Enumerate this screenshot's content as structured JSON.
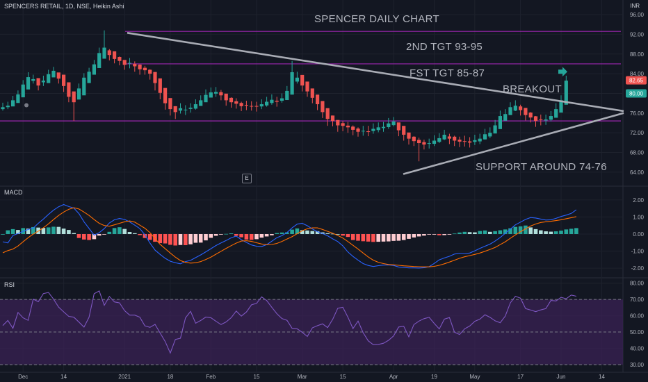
{
  "header": {
    "title": "SPENCERS RETAIL, 1D, NSE, Heikin Ashi",
    "currency": "INR"
  },
  "annotations": {
    "title": "SPENCER DAILY CHART",
    "tgt2": "2ND TGT 93-95",
    "tgt1": "FST TGT 85-87",
    "breakout": "BREAKOUT",
    "support": "SUPPORT AROUND 74-76",
    "event_marker": "E"
  },
  "colors": {
    "up": "#26a69a",
    "down": "#ef5350",
    "level_line": "#9c27b0",
    "trend_line": "#a9acb5",
    "macd_line": "#2962ff",
    "signal_line": "#ff6d00",
    "rsi_line": "#7e57c2",
    "rsi_band": "#3a2254"
  },
  "price_labels": {
    "last": "82.65",
    "current": "80.00"
  },
  "chart_data": [
    {
      "type": "candlestick",
      "name": "Price",
      "y_ticks": [
        "96.00",
        "92.00",
        "88.00",
        "84.00",
        "80.00",
        "76.00",
        "72.00",
        "68.00",
        "64.00"
      ],
      "ylim": [
        62,
        97
      ],
      "x_ticks": [
        "Dec",
        "14",
        "2021",
        "18",
        "Feb",
        "15",
        "Mar",
        "15",
        "Apr",
        "19",
        "May",
        "17",
        "Jun",
        "14"
      ],
      "close": [
        77.2,
        77.5,
        78.6,
        79.8,
        81.8,
        83.3,
        82.9,
        81.6,
        82.6,
        83.9,
        84.6,
        83.0,
        81.5,
        79.3,
        78.2,
        81.0,
        83.2,
        84.4,
        85.9,
        88.2,
        89.3,
        87.8,
        87.0,
        86.6,
        85.8,
        86.2,
        85.5,
        84.9,
        84.7,
        84.0,
        82.1,
        80.1,
        78.0,
        76.8,
        76.2,
        77.0,
        76.7,
        77.1,
        77.8,
        78.6,
        79.7,
        80.2,
        80.3,
        79.6,
        78.6,
        78.2,
        77.9,
        77.4,
        77.5,
        77.4,
        77.3,
        77.8,
        78.3,
        78.7,
        78.3,
        79.0,
        80.5,
        84.3,
        83.2,
        81.6,
        80.4,
        79.1,
        77.8,
        76.2,
        74.8,
        74.4,
        73.5,
        73.4,
        73.1,
        72.6,
        72.2,
        72.4,
        72.3,
        72.8,
        73.1,
        73.2,
        73.9,
        74.3,
        72.5,
        71.6,
        70.8,
        70.3,
        69.9,
        69.6,
        69.9,
        70.4,
        70.9,
        71.6,
        70.8,
        70.4,
        70.2,
        70.3,
        70.0,
        70.5,
        70.8,
        71.7,
        72.0,
        73.5,
        75.4,
        75.8,
        77.2,
        77.5,
        76.6,
        75.6,
        75.1,
        74.4,
        74.6,
        74.7,
        75.4,
        76.8,
        78.6,
        82.6
      ],
      "hilo": [
        [
          76.5,
          78.1
        ],
        [
          76.8,
          78.3
        ],
        [
          77.5,
          79.5
        ],
        [
          78.8,
          80.6
        ],
        [
          80.5,
          82.7
        ],
        [
          82.0,
          84.3
        ],
        [
          82.0,
          83.8
        ],
        [
          80.6,
          82.6
        ],
        [
          81.5,
          83.6
        ],
        [
          82.8,
          84.8
        ],
        [
          83.6,
          85.4
        ],
        [
          82.0,
          84.1
        ],
        [
          80.3,
          82.6
        ],
        [
          78.2,
          80.5
        ],
        [
          74.4,
          79.1
        ],
        [
          79.6,
          82.0
        ],
        [
          82.0,
          84.1
        ],
        [
          83.5,
          85.2
        ],
        [
          85.0,
          86.8
        ],
        [
          87.2,
          89.3
        ],
        [
          88.3,
          92.8
        ],
        [
          86.7,
          89.0
        ],
        [
          86.1,
          88.0
        ],
        [
          85.7,
          87.5
        ],
        [
          84.8,
          86.7
        ],
        [
          85.1,
          87.2
        ],
        [
          84.4,
          86.5
        ],
        [
          83.8,
          85.9
        ],
        [
          83.8,
          85.6
        ],
        [
          82.8,
          84.9
        ],
        [
          80.6,
          83.2
        ],
        [
          78.8,
          81.4
        ],
        [
          76.7,
          79.3
        ],
        [
          75.5,
          78.0
        ],
        [
          74.8,
          77.4
        ],
        [
          75.9,
          78.0
        ],
        [
          75.6,
          77.6
        ],
        [
          76.1,
          78.0
        ],
        [
          76.7,
          78.8
        ],
        [
          77.5,
          79.6
        ],
        [
          78.5,
          80.8
        ],
        [
          79.2,
          81.2
        ],
        [
          79.3,
          81.3
        ],
        [
          78.6,
          80.7
        ],
        [
          77.5,
          79.6
        ],
        [
          77.1,
          79.2
        ],
        [
          76.9,
          79.0
        ],
        [
          76.4,
          78.3
        ],
        [
          76.6,
          78.5
        ],
        [
          76.5,
          78.4
        ],
        [
          76.3,
          78.3
        ],
        [
          76.8,
          78.8
        ],
        [
          77.3,
          79.3
        ],
        [
          77.7,
          79.8
        ],
        [
          77.3,
          79.3
        ],
        [
          78.1,
          80.0
        ],
        [
          79.4,
          81.5
        ],
        [
          82.0,
          86.6
        ],
        [
          82.0,
          84.4
        ],
        [
          80.4,
          82.7
        ],
        [
          79.3,
          81.5
        ],
        [
          78.0,
          80.2
        ],
        [
          76.6,
          78.9
        ],
        [
          75.0,
          77.2
        ],
        [
          73.4,
          75.9
        ],
        [
          73.3,
          75.5
        ],
        [
          72.2,
          74.5
        ],
        [
          72.3,
          74.4
        ],
        [
          72.0,
          74.2
        ],
        [
          71.5,
          73.5
        ],
        [
          71.2,
          73.1
        ],
        [
          71.4,
          73.4
        ],
        [
          71.3,
          73.4
        ],
        [
          71.8,
          73.9
        ],
        [
          72.1,
          74.1
        ],
        [
          72.2,
          74.2
        ],
        [
          72.8,
          75.0
        ],
        [
          73.3,
          75.2
        ],
        [
          71.3,
          73.6
        ],
        [
          70.4,
          72.6
        ],
        [
          69.6,
          71.9
        ],
        [
          69.3,
          71.3
        ],
        [
          66.2,
          71.0
        ],
        [
          68.6,
          70.6
        ],
        [
          68.8,
          70.8
        ],
        [
          69.3,
          71.5
        ],
        [
          69.9,
          71.9
        ],
        [
          70.5,
          72.6
        ],
        [
          69.7,
          71.8
        ],
        [
          69.3,
          71.4
        ],
        [
          69.1,
          71.2
        ],
        [
          69.2,
          71.4
        ],
        [
          69.0,
          71.1
        ],
        [
          69.5,
          71.6
        ],
        [
          69.7,
          71.8
        ],
        [
          70.6,
          72.8
        ],
        [
          70.9,
          73.1
        ],
        [
          72.4,
          74.6
        ],
        [
          74.3,
          76.5
        ],
        [
          74.7,
          76.8
        ],
        [
          76.1,
          78.2
        ],
        [
          76.4,
          78.6
        ],
        [
          75.5,
          77.7
        ],
        [
          74.5,
          76.6
        ],
        [
          74.1,
          76.2
        ],
        [
          73.2,
          75.4
        ],
        [
          73.5,
          75.7
        ],
        [
          73.6,
          75.7
        ],
        [
          74.3,
          76.4
        ],
        [
          75.8,
          78.0
        ],
        [
          77.6,
          79.6
        ],
        [
          78.4,
          83.6
        ]
      ],
      "levels": [
        92.6,
        86.0,
        74.4
      ],
      "trendlines": [
        {
          "from": [
            "2021",
            92.3
          ],
          "to": [
            "Jun 14+",
            76.6
          ]
        },
        {
          "from": [
            "Apr 05",
            63.6
          ],
          "to": [
            "Jun 14+",
            76.4
          ]
        }
      ]
    },
    {
      "type": "macd",
      "name": "MACD",
      "y_ticks": [
        "2.00",
        "1.00",
        "0.00",
        "-1.00",
        "-2.00"
      ],
      "ylim": [
        -2.4,
        2.4
      ],
      "histogram": [
        0.0,
        0.22,
        0.29,
        0.24,
        0.35,
        0.32,
        0.41,
        0.38,
        0.36,
        0.39,
        0.43,
        0.42,
        0.32,
        0.24,
        0.06,
        -0.23,
        -0.32,
        -0.35,
        -0.3,
        -0.09,
        -0.03,
        0.13,
        0.35,
        0.4,
        0.3,
        0.12,
        0.05,
        -0.06,
        -0.23,
        -0.34,
        -0.45,
        -0.53,
        -0.55,
        -0.63,
        -0.67,
        -0.64,
        -0.65,
        -0.6,
        -0.51,
        -0.5,
        -0.37,
        -0.22,
        -0.1,
        -0.02,
        0.01,
        0.04,
        -0.1,
        -0.19,
        -0.32,
        -0.34,
        -0.3,
        -0.21,
        -0.14,
        -0.07,
        0.06,
        0.09,
        0.1,
        0.26,
        0.33,
        0.23,
        0.21,
        0.18,
        0.17,
        0.1,
        0.05,
        0.02,
        0.0,
        -0.09,
        -0.17,
        -0.35,
        -0.39,
        -0.42,
        -0.44,
        -0.46,
        -0.45,
        -0.44,
        -0.43,
        -0.4,
        -0.39,
        -0.35,
        -0.28,
        -0.2,
        -0.14,
        -0.09,
        -0.03,
        -0.02,
        -0.07,
        -0.06,
        -0.01,
        0.03,
        0.09,
        0.13,
        0.11,
        0.1,
        0.18,
        0.21,
        0.13,
        0.17,
        0.22,
        0.27,
        0.34,
        0.42,
        0.45,
        0.5,
        0.39,
        0.29,
        0.22,
        0.16,
        0.14,
        0.16,
        0.2,
        0.27,
        0.31,
        0.35
      ],
      "macd": [
        -0.45,
        -0.52,
        -0.08,
        0.03,
        0.15,
        0.27,
        0.35,
        0.63,
        0.88,
        1.15,
        1.4,
        1.6,
        1.73,
        1.61,
        1.52,
        1.2,
        0.72,
        0.33,
        -0.06,
        0.08,
        0.32,
        0.65,
        0.84,
        0.91,
        0.86,
        0.71,
        0.52,
        0.32,
        -0.04,
        -0.53,
        -0.94,
        -1.19,
        -1.42,
        -1.59,
        -1.68,
        -1.74,
        -1.61,
        -1.54,
        -1.38,
        -1.22,
        -1.04,
        -0.86,
        -0.67,
        -0.52,
        -0.38,
        -0.22,
        -0.12,
        -0.33,
        -0.49,
        -0.64,
        -0.71,
        -0.73,
        -0.62,
        -0.42,
        -0.21,
        -0.09,
        0.09,
        0.36,
        0.58,
        0.63,
        0.49,
        0.3,
        0.14,
        0.03,
        -0.1,
        -0.28,
        -0.44,
        -0.69,
        -1.05,
        -1.31,
        -1.53,
        -1.73,
        -1.84,
        -1.9,
        -1.85,
        -1.82,
        -1.81,
        -1.84,
        -1.93,
        -1.95,
        -1.98,
        -1.98,
        -1.99,
        -1.97,
        -1.91,
        -1.72,
        -1.51,
        -1.4,
        -1.3,
        -1.17,
        -1.12,
        -1.14,
        -1.11,
        -0.98,
        -0.84,
        -0.71,
        -0.59,
        -0.41,
        -0.2,
        0.04,
        0.29,
        0.54,
        0.7,
        0.86,
        0.97,
        0.94,
        0.88,
        0.82,
        0.84,
        0.92,
        1.03,
        1.11,
        1.21,
        1.42
      ],
      "signal": [
        -1.1,
        -0.97,
        -0.88,
        -0.7,
        -0.45,
        -0.21,
        0.0,
        0.17,
        0.37,
        0.6,
        0.85,
        1.09,
        1.29,
        1.45,
        1.54,
        1.47,
        1.29,
        1.09,
        0.85,
        0.63,
        0.5,
        0.46,
        0.54,
        0.63,
        0.72,
        0.77,
        0.7,
        0.52,
        0.34,
        0.08,
        -0.26,
        -0.6,
        -0.86,
        -1.11,
        -1.35,
        -1.55,
        -1.66,
        -1.7,
        -1.68,
        -1.61,
        -1.49,
        -1.35,
        -1.18,
        -1.01,
        -0.84,
        -0.68,
        -0.53,
        -0.41,
        -0.39,
        -0.43,
        -0.51,
        -0.58,
        -0.62,
        -0.61,
        -0.55,
        -0.43,
        -0.29,
        -0.15,
        0.02,
        0.19,
        0.31,
        0.36,
        0.36,
        0.27,
        0.16,
        0.05,
        -0.08,
        -0.23,
        -0.44,
        -0.66,
        -0.88,
        -1.11,
        -1.34,
        -1.53,
        -1.65,
        -1.73,
        -1.78,
        -1.8,
        -1.83,
        -1.86,
        -1.88,
        -1.9,
        -1.91,
        -1.92,
        -1.92,
        -1.89,
        -1.83,
        -1.74,
        -1.64,
        -1.53,
        -1.42,
        -1.33,
        -1.26,
        -1.19,
        -1.11,
        -1.01,
        -0.9,
        -0.78,
        -0.62,
        -0.45,
        -0.25,
        -0.05,
        0.14,
        0.31,
        0.47,
        0.59,
        0.68,
        0.72,
        0.75,
        0.79,
        0.84,
        0.9,
        0.96,
        1.02
      ]
    },
    {
      "type": "line",
      "name": "RSI",
      "y_ticks": [
        "80.00",
        "70.00",
        "60.00",
        "50.00",
        "40.00",
        "30.00"
      ],
      "ylim": [
        27,
        82
      ],
      "band": [
        30,
        70
      ],
      "values": [
        54.0,
        57.1,
        52.3,
        62.0,
        58.7,
        57.2,
        70.2,
        68.6,
        73.6,
        74.3,
        70.2,
        65.3,
        62.4,
        59.6,
        59.1,
        56.1,
        53.0,
        59.1,
        73.5,
        75.2,
        66.4,
        71.8,
        68.5,
        67.9,
        63.1,
        60.4,
        60.4,
        59.1,
        53.8,
        52.9,
        54.7,
        49.4,
        44.2,
        37.1,
        45.4,
        46.2,
        58.7,
        62.7,
        55.4,
        57.1,
        59.2,
        58.8,
        56.6,
        54.6,
        56.2,
        58.8,
        62.9,
        59.8,
        62.3,
        66.7,
        67.6,
        71.6,
        69.3,
        65.2,
        61.3,
        58.3,
        57.2,
        52.3,
        52.0,
        49.8,
        47.3,
        52.6,
        53.9,
        55.0,
        52.7,
        57.8,
        64.6,
        65.2,
        59.1,
        52.1,
        56.7,
        49.6,
        44.6,
        42.2,
        42.4,
        43.1,
        44.9,
        47.6,
        53.1,
        53.5,
        47.1,
        54.6,
        56.7,
        58.2,
        59.0,
        55.3,
        51.9,
        57.9,
        58.9,
        49.9,
        48.5,
        52.0,
        53.7,
        56.6,
        57.9,
        60.6,
        59.0,
        56.9,
        55.7,
        59.8,
        67.9,
        72.0,
        70.8,
        64.4,
        63.5,
        62.5,
        63.6,
        64.4,
        69.4,
        69.1,
        71.3,
        70.4,
        72.7,
        72.0
      ]
    }
  ]
}
